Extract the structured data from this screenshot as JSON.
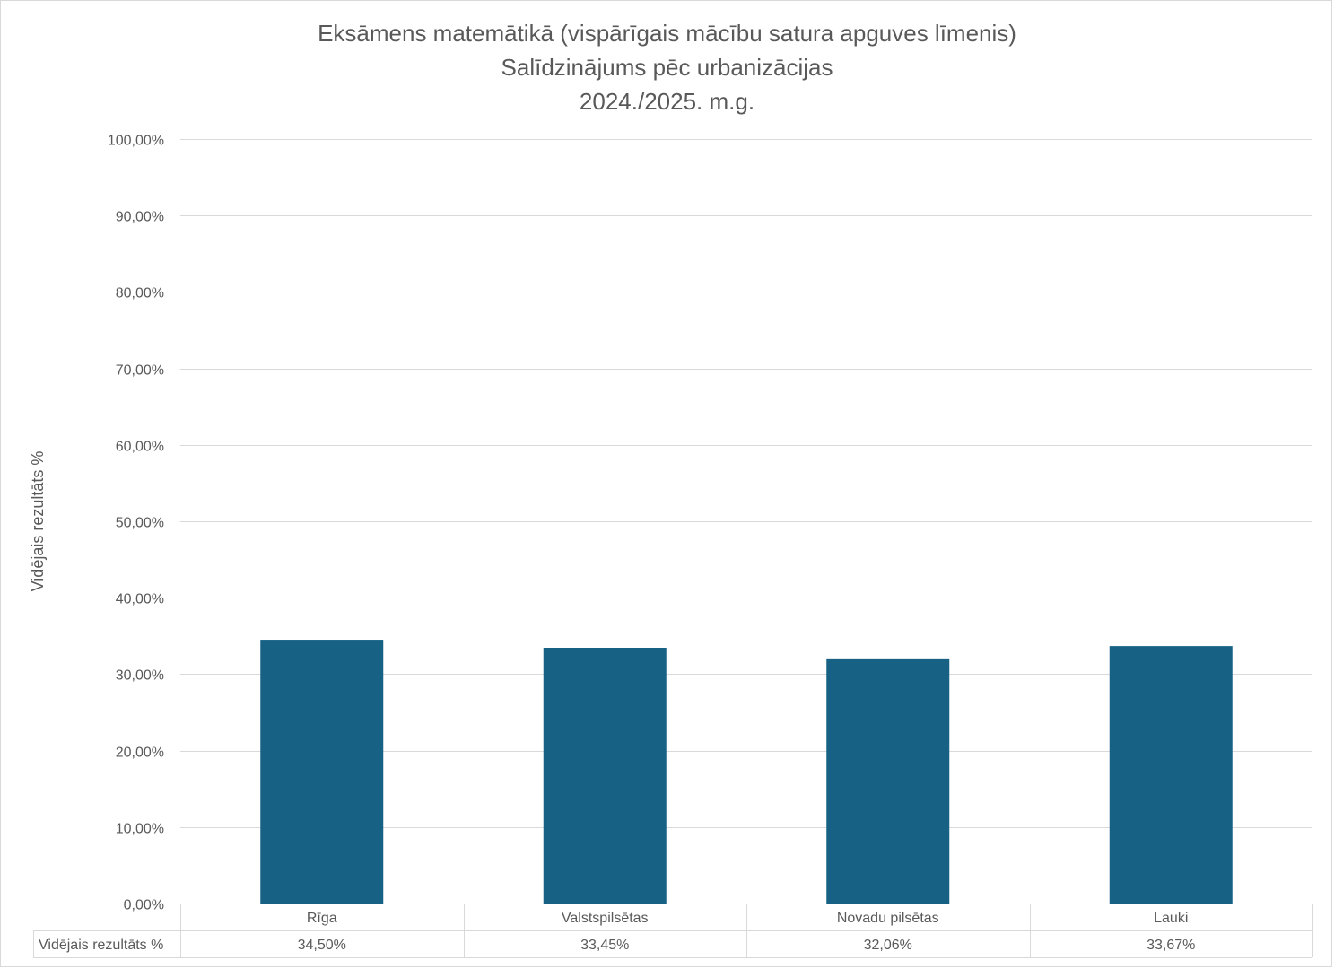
{
  "title_lines": [
    "Eksāmens matemātikā (vispārīgais mācību satura apguves līmenis)",
    "Salīdzinājums pēc urbanizācijas",
    "2024./2025. m.g."
  ],
  "colors": {
    "bar": "#176185",
    "grid": "#d9d9d9",
    "text": "#595959"
  },
  "chart_data": {
    "type": "bar",
    "title": "Eksāmens matemātikā (vispārīgais mācību satura apguves līmenis) / Salīdzinājums pēc urbanizācijas / 2024./2025. m.g.",
    "ylabel": "Vidējais rezultāts %",
    "xlabel": "",
    "categories": [
      "Rīga",
      "Valstspilsētas",
      "Novadu pilsētas",
      "Lauki"
    ],
    "series": [
      {
        "name": "Vidējais rezultāts %",
        "values": [
          34.5,
          33.45,
          32.06,
          33.67
        ],
        "labels": [
          "34,50%",
          "33,45%",
          "32,06%",
          "33,67%"
        ]
      }
    ],
    "ylim": [
      0,
      100
    ],
    "yticks": [
      "0,00%",
      "10,00%",
      "20,00%",
      "30,00%",
      "40,00%",
      "50,00%",
      "60,00%",
      "70,00%",
      "80,00%",
      "90,00%",
      "100,00%"
    ],
    "grid": true,
    "data_table": true
  }
}
